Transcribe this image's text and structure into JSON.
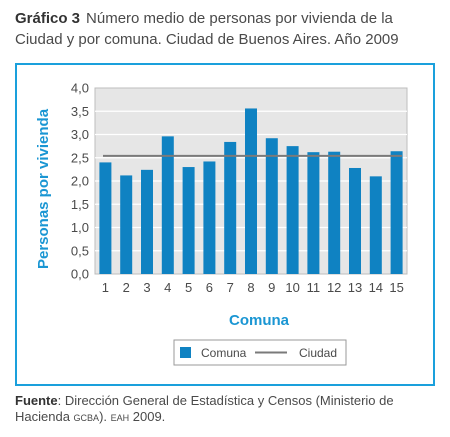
{
  "header": {
    "label": "Gráfico 3",
    "title": "Número medio de personas por vivienda de la Ciudad y por comuna. Ciudad de Buenos Aires. Año 2009"
  },
  "chart_data": {
    "type": "bar",
    "categories": [
      "1",
      "2",
      "3",
      "4",
      "5",
      "6",
      "7",
      "8",
      "9",
      "10",
      "11",
      "12",
      "13",
      "14",
      "15"
    ],
    "series": [
      {
        "name": "Comuna",
        "type": "bar",
        "values": [
          2.4,
          2.12,
          2.24,
          2.96,
          2.3,
          2.42,
          2.84,
          3.56,
          2.92,
          2.75,
          2.62,
          2.63,
          2.28,
          2.1,
          2.64
        ]
      },
      {
        "name": "Ciudad",
        "type": "line",
        "value": 2.54
      }
    ],
    "yticks": [
      "0,0",
      "0,5",
      "1,0",
      "1,5",
      "2,0",
      "2,5",
      "3,0",
      "3,5",
      "4,0"
    ],
    "ylim": [
      0,
      4
    ],
    "xlabel": "Comuna",
    "ylabel": "Personas por vivienda",
    "legend": {
      "placement": "bottom",
      "items": [
        "Comuna",
        "Ciudad"
      ]
    },
    "grid": true,
    "colors": {
      "bar": "#0f82c2",
      "line": "#7a7a7a",
      "plot_bg": "#e6e6e6",
      "grid": "#ffffff",
      "accent": "#1aa0dc"
    }
  },
  "footer": {
    "source_label": "Fuente",
    "source_text": ": Dirección General de Estadística y Censos (Ministerio de Hacienda ",
    "gcba": "GCBA",
    "mid": "). ",
    "eah": "EAH",
    "end": " 2009."
  }
}
